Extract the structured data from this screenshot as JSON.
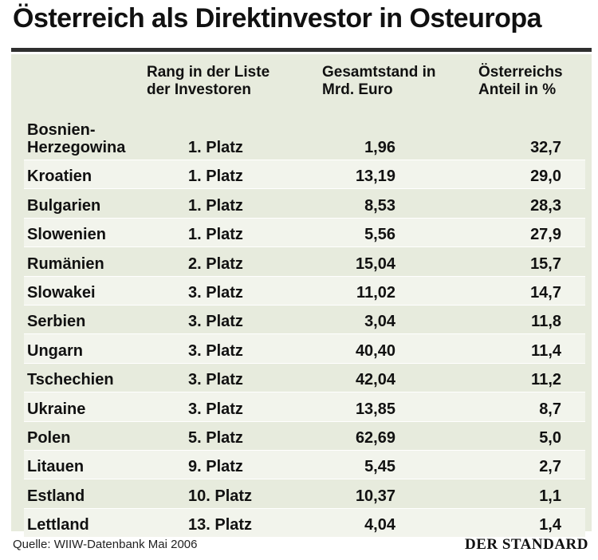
{
  "title": "Österreich als Direktinvestor in Osteuropa",
  "columns": {
    "rank": [
      "Rang in der Liste",
      "der Investoren"
    ],
    "total": [
      "Gesamtstand in",
      "Mrd. Euro"
    ],
    "share": [
      "Österreichs",
      "Anteil in %"
    ]
  },
  "source": "Quelle: WIIW-Datenbank Mai 2006",
  "brand": "DER STANDARD",
  "colors": {
    "panel": "#e7ebdd",
    "rule": "#2f2f2f"
  },
  "chart_data": {
    "type": "table",
    "title": "Österreich als Direktinvestor in Osteuropa",
    "headers": [
      "",
      "Rang in der Liste der Investoren",
      "Gesamtstand in Mrd. Euro",
      "Österreichs Anteil in %"
    ],
    "rows": [
      {
        "country": [
          "Bosnien-",
          "Herzegowina"
        ],
        "rank": "1. Platz",
        "total": "1,96",
        "share": "32,7"
      },
      {
        "country": [
          "Kroatien"
        ],
        "rank": "1. Platz",
        "total": "13,19",
        "share": "29,0"
      },
      {
        "country": [
          "Bulgarien"
        ],
        "rank": "1. Platz",
        "total": "8,53",
        "share": "28,3"
      },
      {
        "country": [
          "Slowenien"
        ],
        "rank": "1. Platz",
        "total": "5,56",
        "share": "27,9"
      },
      {
        "country": [
          "Rumänien"
        ],
        "rank": "2. Platz",
        "total": "15,04",
        "share": "15,7"
      },
      {
        "country": [
          "Slowakei"
        ],
        "rank": "3. Platz",
        "total": "11,02",
        "share": "14,7"
      },
      {
        "country": [
          "Serbien"
        ],
        "rank": "3. Platz",
        "total": "3,04",
        "share": "11,8"
      },
      {
        "country": [
          "Ungarn"
        ],
        "rank": "3. Platz",
        "total": "40,40",
        "share": "11,4"
      },
      {
        "country": [
          "Tschechien"
        ],
        "rank": "3. Platz",
        "total": "42,04",
        "share": "11,2"
      },
      {
        "country": [
          "Ukraine"
        ],
        "rank": "3. Platz",
        "total": "13,85",
        "share": "8,7"
      },
      {
        "country": [
          "Polen"
        ],
        "rank": "5. Platz",
        "total": "62,69",
        "share": "5,0"
      },
      {
        "country": [
          "Litauen"
        ],
        "rank": "9. Platz",
        "total": "5,45",
        "share": "2,7"
      },
      {
        "country": [
          "Estland"
        ],
        "rank": "10. Platz",
        "total": "10,37",
        "share": "1,1"
      },
      {
        "country": [
          "Lettland"
        ],
        "rank": "13. Platz",
        "total": "4,04",
        "share": "1,4"
      }
    ]
  }
}
